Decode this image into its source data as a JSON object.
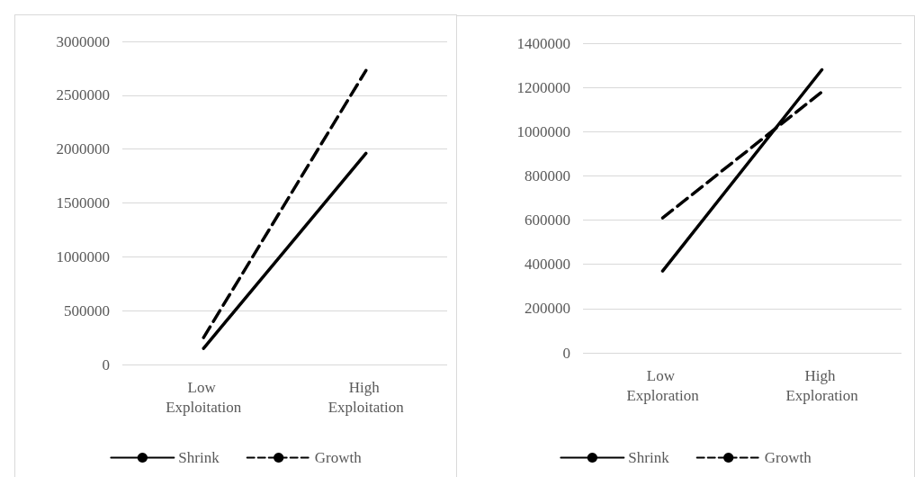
{
  "chart_data": [
    {
      "type": "line",
      "categories": [
        "Low Exploitation",
        "High Exploitation"
      ],
      "series": [
        {
          "name": "Shrink",
          "color": "#000000",
          "line_style": "solid",
          "values": [
            150000,
            1960000
          ]
        },
        {
          "name": "Growth",
          "color": "#000000",
          "line_style": "dashed",
          "values": [
            250000,
            2730000
          ]
        }
      ],
      "ylim": [
        0,
        3000000
      ],
      "yticks": [
        0,
        500000,
        1000000,
        1500000,
        2000000,
        2500000,
        3000000
      ],
      "grid": "y",
      "legend": "bottom",
      "marker": "none"
    },
    {
      "type": "line",
      "categories": [
        "Low Exploration",
        "High Exploration"
      ],
      "series": [
        {
          "name": "Shrink",
          "color": "#000000",
          "line_style": "solid",
          "values": [
            370000,
            1280000
          ]
        },
        {
          "name": "Growth",
          "color": "#000000",
          "line_style": "dashed",
          "values": [
            610000,
            1180000
          ]
        }
      ],
      "ylim": [
        0,
        1400000
      ],
      "yticks": [
        0,
        200000,
        400000,
        600000,
        800000,
        1000000,
        1200000,
        1400000
      ],
      "grid": "y",
      "legend": "bottom",
      "marker": "none"
    }
  ]
}
